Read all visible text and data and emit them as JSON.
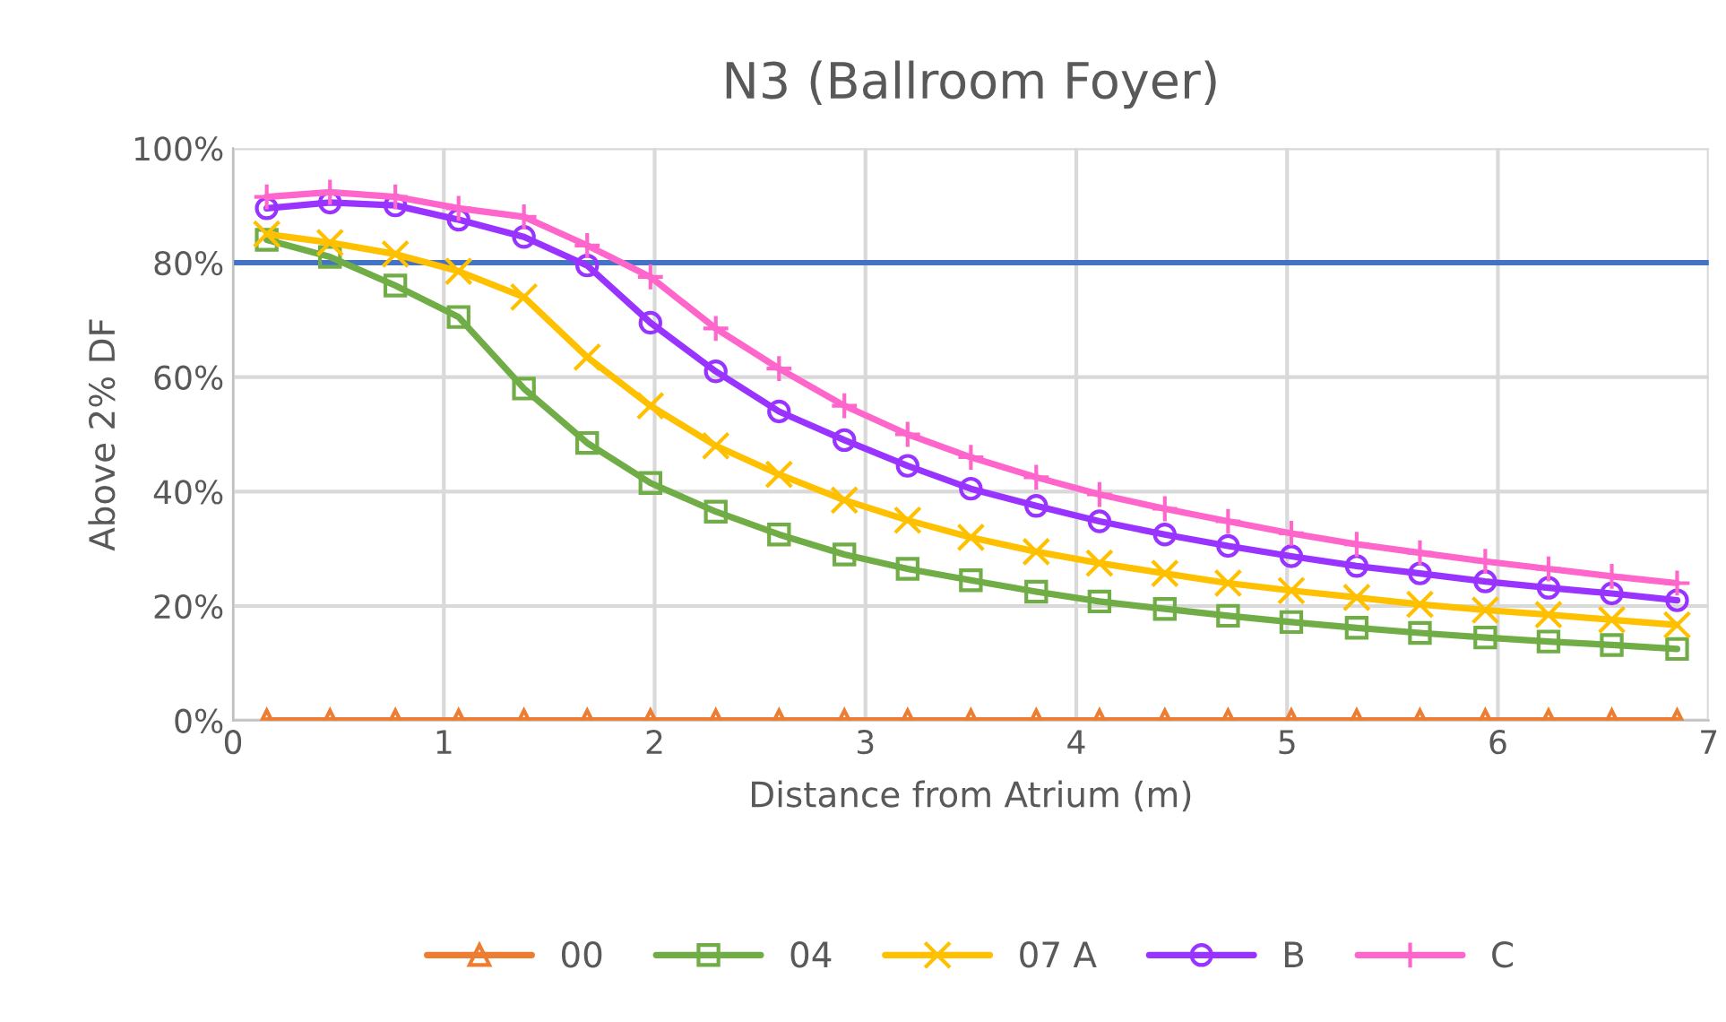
{
  "chart_data": {
    "type": "line",
    "title": "N3 (Ballroom Foyer)",
    "xlabel": "Distance from Atrium (m)",
    "ylabel": "Above 2% DF",
    "x": [
      0.16,
      0.46,
      0.77,
      1.07,
      1.38,
      1.68,
      1.98,
      2.29,
      2.59,
      2.9,
      3.2,
      3.5,
      3.81,
      4.11,
      4.42,
      4.72,
      5.02,
      5.33,
      5.63,
      5.94,
      6.24,
      6.54,
      6.85
    ],
    "series": [
      {
        "name": "00",
        "color": "#ed7d31",
        "marker": "triangle",
        "values": [
          0,
          0,
          0,
          0,
          0,
          0,
          0,
          0,
          0,
          0,
          0,
          0,
          0,
          0,
          0,
          0,
          0,
          0,
          0,
          0,
          0,
          0,
          0
        ]
      },
      {
        "name": "04",
        "color": "#70ad47",
        "marker": "square",
        "values": [
          84,
          81,
          76,
          70.5,
          58,
          48.5,
          41.5,
          36.5,
          32.5,
          29,
          26.5,
          24.5,
          22.5,
          20.8,
          19.5,
          18.3,
          17.2,
          16.2,
          15.3,
          14.5,
          13.8,
          13.2,
          12.5
        ]
      },
      {
        "name": "07 A",
        "color": "#ffc000",
        "marker": "cross",
        "values": [
          85,
          83.5,
          81.5,
          78.5,
          74,
          63.5,
          55,
          48,
          43,
          38.5,
          35,
          32,
          29.5,
          27.5,
          25.7,
          24,
          22.7,
          21.5,
          20.3,
          19.3,
          18.5,
          17.6,
          16.7
        ]
      },
      {
        "name": "B",
        "color": "#9933ff",
        "marker": "circle",
        "values": [
          89.5,
          90.5,
          90,
          87.5,
          84.5,
          79.5,
          69.5,
          61,
          54,
          49,
          44.5,
          40.5,
          37.5,
          34.8,
          32.5,
          30.5,
          28.7,
          27,
          25.7,
          24.3,
          23.2,
          22.2,
          21
        ]
      },
      {
        "name": "C",
        "color": "#ff66cc",
        "marker": "plus",
        "values": [
          91.5,
          92.3,
          91.5,
          89.5,
          88,
          83,
          77.5,
          68.5,
          61.5,
          55,
          50,
          46,
          42.5,
          39.5,
          37,
          34.8,
          32.7,
          30.8,
          29.3,
          27.8,
          26.5,
          25.2,
          24
        ]
      }
    ],
    "ref_lines": [
      {
        "axis": "y",
        "value": 80,
        "color": "#4472c4"
      }
    ],
    "xlim": [
      0,
      7
    ],
    "xticks": [
      0,
      1,
      2,
      3,
      4,
      5,
      6,
      7
    ],
    "ylim": [
      0,
      100
    ],
    "yticks": [
      {
        "value": 0,
        "label": "0%"
      },
      {
        "value": 20,
        "label": "20%"
      },
      {
        "value": 40,
        "label": "40%"
      },
      {
        "value": 60,
        "label": "60%"
      },
      {
        "value": 80,
        "label": "80%"
      },
      {
        "value": 100,
        "label": "100%"
      }
    ],
    "grid": true,
    "legend": "bottom",
    "line_style": "solid"
  }
}
